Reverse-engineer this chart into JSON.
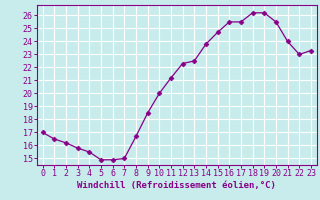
{
  "x": [
    0,
    1,
    2,
    3,
    4,
    5,
    6,
    7,
    8,
    9,
    10,
    11,
    12,
    13,
    14,
    15,
    16,
    17,
    18,
    19,
    20,
    21,
    22,
    23
  ],
  "y": [
    17.0,
    16.5,
    16.2,
    15.8,
    15.5,
    14.9,
    14.9,
    15.0,
    16.7,
    18.5,
    20.0,
    21.2,
    22.3,
    22.5,
    23.8,
    24.7,
    25.5,
    25.5,
    26.2,
    26.2,
    25.5,
    24.0,
    23.0,
    23.3
  ],
  "line_color": "#880088",
  "marker": "D",
  "marker_size": 2.5,
  "bg_color": "#c8ecec",
  "grid_color": "#ffffff",
  "xlabel": "Windchill (Refroidissement éolien,°C)",
  "xlabel_fontsize": 6.5,
  "tick_fontsize": 6.0,
  "ylim": [
    14.5,
    26.8
  ],
  "yticks": [
    15,
    16,
    17,
    18,
    19,
    20,
    21,
    22,
    23,
    24,
    25,
    26
  ],
  "xlim": [
    -0.5,
    23.5
  ],
  "xticks": [
    0,
    1,
    2,
    3,
    4,
    5,
    6,
    7,
    8,
    9,
    10,
    11,
    12,
    13,
    14,
    15,
    16,
    17,
    18,
    19,
    20,
    21,
    22,
    23
  ]
}
